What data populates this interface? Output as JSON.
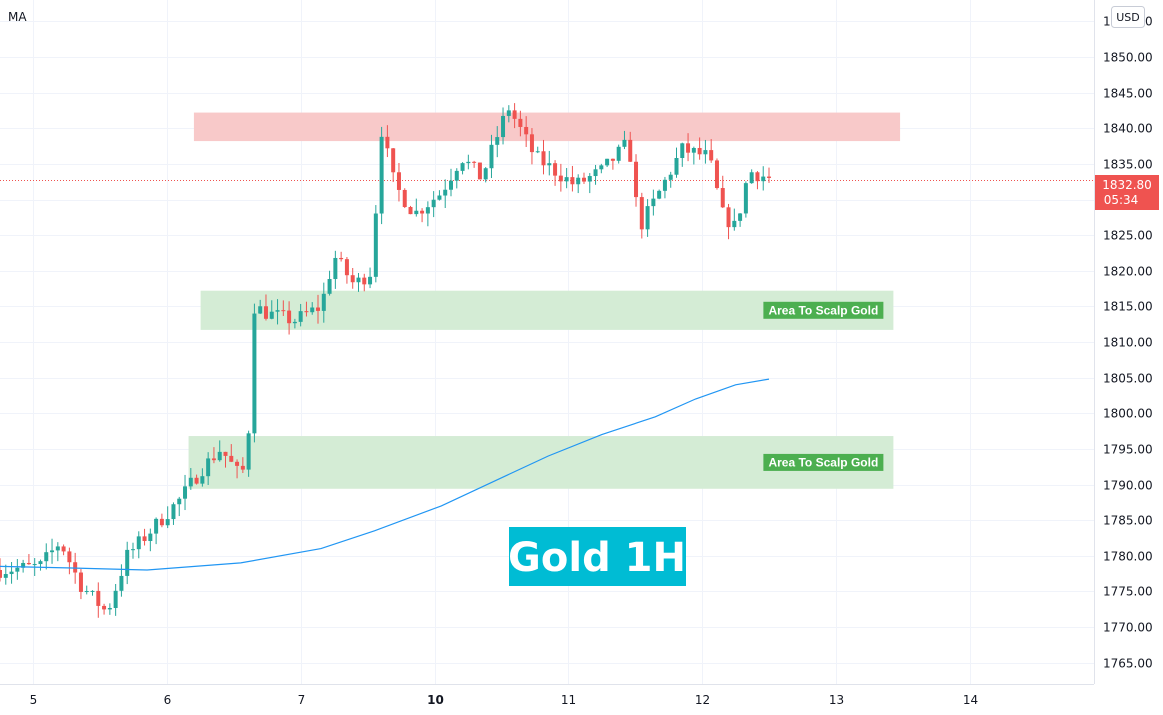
{
  "indicator_label": "MA",
  "currency_button": "USD",
  "title": "Gold 1H",
  "zone_label": "Area To Scalp Gold",
  "last_price": {
    "price": "1832.80",
    "countdown": "05:34"
  },
  "colors": {
    "up": "#26a69a",
    "down": "#ef5350",
    "ma": "#2196f3",
    "resistance_zone": "#f8c9c9",
    "support_zone": "#d4ecd5",
    "zone_label_bg": "#4caf50",
    "title_bg": "#00bcd4",
    "price_tag": "#ef5350",
    "grid": "#f0f3fa"
  },
  "chart_data": {
    "type": "candlestick",
    "ylim": [
      1762,
      1858
    ],
    "y_ticks": [
      1765,
      1770,
      1775,
      1780,
      1785,
      1790,
      1795,
      1800,
      1805,
      1810,
      1815,
      1820,
      1825,
      1830,
      1835,
      1840,
      1845,
      1850,
      1855
    ],
    "y_tick_labels": [
      "1765.00",
      "1770.00",
      "1775.00",
      "1780.00",
      "1785.00",
      "1790.00",
      "1795.00",
      "1800.00",
      "1805.00",
      "1810.00",
      "1815.00",
      "1820.00",
      "1825.00",
      "1830.00",
      "1835.00",
      "1840.00",
      "1845.00",
      "1850.00",
      "1855.00"
    ],
    "x_day_labels": [
      {
        "label": "5",
        "pos": 0.25,
        "bold": false
      },
      {
        "label": "6",
        "pos": 1.25,
        "bold": false
      },
      {
        "label": "7",
        "pos": 2.25,
        "bold": false
      },
      {
        "label": "10",
        "pos": 3.25,
        "bold": true
      },
      {
        "label": "11",
        "pos": 4.25,
        "bold": false
      },
      {
        "label": "12",
        "pos": 5.25,
        "bold": false
      },
      {
        "label": "13",
        "pos": 6.25,
        "bold": false
      },
      {
        "label": "14",
        "pos": 7.25,
        "bold": false
      }
    ],
    "x_range_days": [
      0,
      8.18
    ],
    "candles_anchor": [
      [
        0.0,
        1778
      ],
      [
        0.3,
        1778.5
      ],
      [
        0.45,
        1782
      ],
      [
        0.6,
        1776
      ],
      [
        0.8,
        1772
      ],
      [
        0.95,
        1780
      ],
      [
        1.15,
        1784
      ],
      [
        1.35,
        1788
      ],
      [
        1.5,
        1792
      ],
      [
        1.65,
        1795
      ],
      [
        1.8,
        1791
      ],
      [
        1.85,
        1794
      ],
      [
        1.9,
        1815
      ],
      [
        2.0,
        1814
      ],
      [
        2.2,
        1813
      ],
      [
        2.4,
        1815
      ],
      [
        2.5,
        1822
      ],
      [
        2.65,
        1818
      ],
      [
        2.78,
        1820
      ],
      [
        2.85,
        1840
      ],
      [
        2.95,
        1832
      ],
      [
        3.1,
        1828
      ],
      [
        3.3,
        1831
      ],
      [
        3.45,
        1836
      ],
      [
        3.6,
        1833
      ],
      [
        3.8,
        1843
      ],
      [
        4.0,
        1836
      ],
      [
        4.3,
        1832
      ],
      [
        4.5,
        1834
      ],
      [
        4.7,
        1838
      ],
      [
        4.78,
        1826
      ],
      [
        4.9,
        1830
      ],
      [
        5.1,
        1837
      ],
      [
        5.3,
        1836
      ],
      [
        5.4,
        1828
      ],
      [
        5.5,
        1826
      ],
      [
        5.6,
        1834
      ],
      [
        5.75,
        1833
      ]
    ],
    "candle_count": 134,
    "ma_series": [
      [
        0.0,
        1778.5
      ],
      [
        0.5,
        1778.3
      ],
      [
        1.1,
        1778
      ],
      [
        1.8,
        1779
      ],
      [
        2.4,
        1781
      ],
      [
        2.8,
        1783.5
      ],
      [
        3.3,
        1787
      ],
      [
        3.7,
        1790.5
      ],
      [
        4.1,
        1794
      ],
      [
        4.5,
        1797
      ],
      [
        4.9,
        1799.5
      ],
      [
        5.2,
        1802
      ],
      [
        5.5,
        1804
      ],
      [
        5.75,
        1804.8
      ]
    ],
    "zones": [
      {
        "kind": "resistance",
        "x0": 1.45,
        "x1": 6.73,
        "y0": 1838.2,
        "y1": 1842.2,
        "label": false
      },
      {
        "kind": "support",
        "x0": 1.5,
        "x1": 6.68,
        "y0": 1811.7,
        "y1": 1817.2,
        "label": true
      },
      {
        "kind": "support",
        "x0": 1.41,
        "x1": 6.68,
        "y0": 1789.4,
        "y1": 1796.8,
        "label": true
      }
    ],
    "last_price_value": 1832.8
  }
}
